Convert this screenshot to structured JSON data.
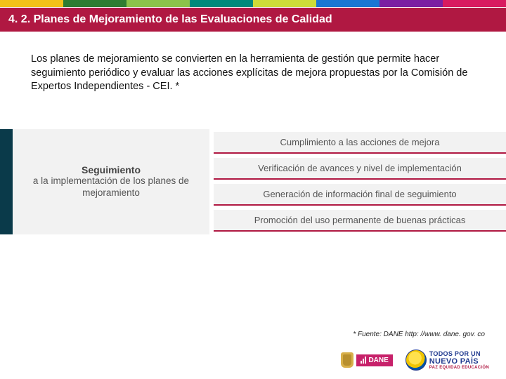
{
  "stripe_colors": [
    "#f2c21a",
    "#2e7d32",
    "#8bc34a",
    "#00897b",
    "#cddc39",
    "#1976d2",
    "#7b1fa2",
    "#d81b60"
  ],
  "header": {
    "title": "4. 2. Planes de Mejoramiento de las Evaluaciones de Calidad",
    "bg": "#b01842"
  },
  "paragraph": "Los planes de mejoramiento se convierten en la herramienta de gestión que permite hacer seguimiento periódico y evaluar las acciones explícitas de mejora propuestas por la Comisión de Expertos Independientes - CEI. *",
  "diagram": {
    "left_accent_color": "#0a3a4a",
    "left": {
      "line1": "Seguimiento",
      "line2": "a la implementación de los planes de mejoramiento"
    },
    "rows": [
      "Cumplimiento a las acciones de mejora",
      "Verificación de avances y nivel de implementación",
      "Generación de información final de seguimiento",
      "Promoción del uso permanente de buenas prácticas"
    ],
    "row_border_color": "#b01842"
  },
  "footnote": "* Fuente: DANE http: //www. dane. gov. co",
  "logos": {
    "dane_label": "DANE",
    "nuevo_line1": "TODOS POR UN",
    "nuevo_line2": "NUEVO PAÍS",
    "nuevo_line3": "PAZ  EQUIDAD  EDUCACIÓN"
  }
}
